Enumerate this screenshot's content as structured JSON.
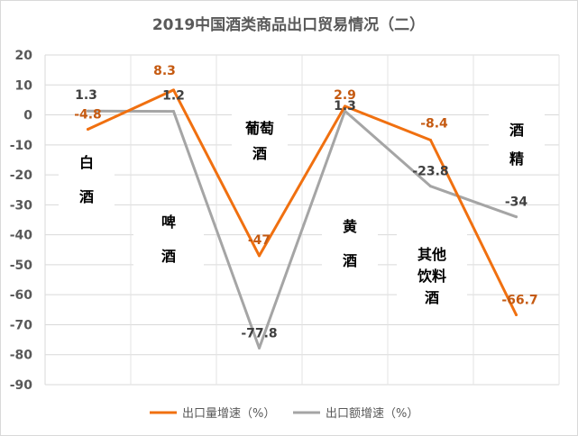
{
  "chart_data": {
    "type": "line",
    "title": "2019中国酒类商品出口贸易情况（二）",
    "xlabel": "",
    "ylabel": "",
    "ylim": [
      -90,
      20
    ],
    "yticks": [
      20,
      10,
      0,
      -10,
      -20,
      -30,
      -40,
      -50,
      -60,
      -70,
      -80,
      -90
    ],
    "grid": true,
    "legend_position": "bottom",
    "categories": [
      "白酒",
      "啤酒",
      "葡萄酒",
      "黄酒",
      "其他饮料酒",
      "酒精"
    ],
    "category_labels": [
      [
        "白",
        "酒"
      ],
      [
        "啤",
        "酒"
      ],
      [
        "葡萄",
        "酒"
      ],
      [
        "黄",
        "酒"
      ],
      [
        "其他",
        "饮料",
        "酒"
      ],
      [
        "酒",
        "精"
      ]
    ],
    "series": [
      {
        "name": "出口量增速（%）",
        "color": "#F07010",
        "values": [
          -4.8,
          8.3,
          -47,
          2.9,
          -8.4,
          -66.7
        ],
        "labels": [
          "-4.8",
          "8.3",
          "-47",
          "2.9",
          "-8.4",
          "-66.7"
        ]
      },
      {
        "name": "出口额增速（%）",
        "color": "#A5A5A5",
        "values": [
          1.3,
          1.2,
          -77.8,
          1.3,
          -23.8,
          -34
        ],
        "labels": [
          "1.3",
          "1.2",
          "-77.8",
          "1.3",
          "-23.8",
          "-34"
        ]
      }
    ]
  }
}
